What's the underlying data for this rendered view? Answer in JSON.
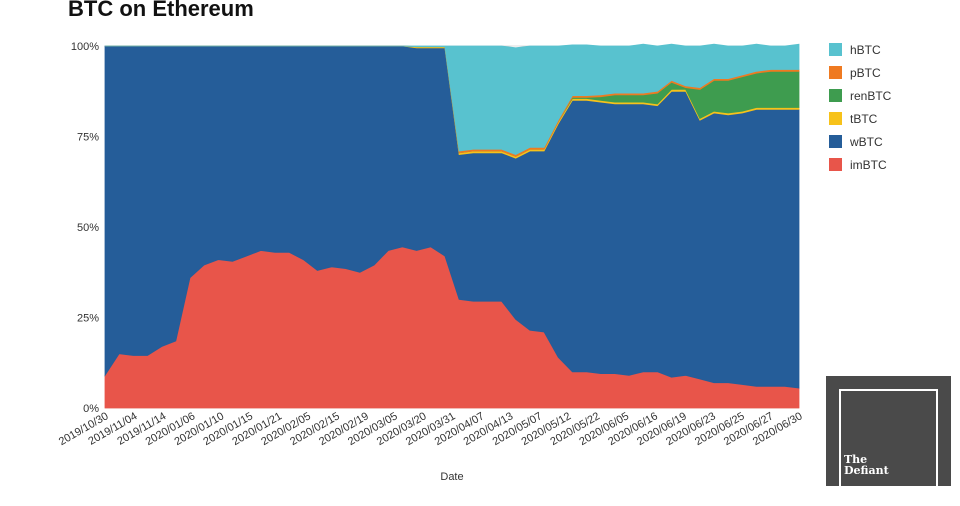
{
  "chart_data": {
    "type": "area",
    "stacking": "percent",
    "title": "BTC on Ethereum",
    "xlabel": "Date",
    "ylabel": "",
    "ylim": [
      0,
      100
    ],
    "yticks": [
      "0%",
      "25%",
      "50%",
      "75%",
      "100%"
    ],
    "x_tick_labels": [
      "2019/10/30",
      "2019/11/04",
      "2019/11/14",
      "2020/01/06",
      "2020/01/10",
      "2020/01/15",
      "2020/01/21",
      "2020/02/05",
      "2020/02/15",
      "2020/02/19",
      "2020/03/05",
      "2020/03/20",
      "2020/03/31",
      "2020/04/07",
      "2020/04/13",
      "2020/05/07",
      "2020/05/12",
      "2020/05/22",
      "2020/06/05",
      "2020/06/16",
      "2020/06/19",
      "2020/06/23",
      "2020/06/25",
      "2020/06/27",
      "2020/06/30"
    ],
    "legend_position": "right",
    "grid": true,
    "series": [
      {
        "name": "imBTC",
        "color": "#e8554a",
        "values": [
          9,
          15,
          14.5,
          14.5,
          17,
          18.5,
          36,
          39.5,
          41,
          40.5,
          42,
          43.5,
          43,
          43,
          41,
          38,
          39,
          38.5,
          37.5,
          39.5,
          43.5,
          44.5,
          43.5,
          44.5,
          42,
          30,
          29.5,
          29.5,
          29.5,
          24.5,
          21.5,
          21,
          14,
          10,
          10,
          9.5,
          9.5,
          9,
          10,
          10,
          8.5,
          9,
          8,
          7,
          7,
          6.5,
          6,
          6,
          6,
          5.5
        ]
      },
      {
        "name": "wBTC",
        "color": "#255d99",
        "values": [
          91,
          85,
          85.5,
          85.5,
          83,
          81.5,
          64,
          60.5,
          59,
          59.5,
          58,
          56.5,
          57,
          57,
          59,
          62,
          61,
          61.5,
          62.5,
          60.5,
          56.5,
          55.5,
          56,
          55,
          57.5,
          40,
          41,
          41,
          41,
          44.5,
          49.5,
          50,
          64.5,
          75,
          75,
          75,
          74.5,
          75,
          74,
          73.5,
          79,
          78.5,
          71.5,
          74.5,
          74,
          75,
          76.5,
          76.5,
          76.5,
          77
        ]
      },
      {
        "name": "tBTC",
        "color": "#f7c21a",
        "values": [
          0,
          0,
          0,
          0,
          0,
          0,
          0,
          0,
          0,
          0,
          0,
          0,
          0,
          0,
          0,
          0,
          0,
          0,
          0,
          0,
          0,
          0,
          0.3,
          0.3,
          0.3,
          0.5,
          0.5,
          0.5,
          0.5,
          0.5,
          0.5,
          0.5,
          0.5,
          0.5,
          0.5,
          0.5,
          0.5,
          0.5,
          0.5,
          0.5,
          0.5,
          0.5,
          0.5,
          0.5,
          0.5,
          0.5,
          0.5,
          0.5,
          0.5,
          0.5
        ]
      },
      {
        "name": "renBTC",
        "color": "#3e9c4f",
        "values": [
          0,
          0,
          0,
          0,
          0,
          0,
          0,
          0,
          0,
          0,
          0,
          0,
          0,
          0,
          0,
          0,
          0,
          0,
          0,
          0,
          0,
          0,
          0,
          0,
          0,
          0,
          0,
          0,
          0,
          0,
          0,
          0,
          0,
          0.3,
          0.3,
          1,
          2,
          2,
          2,
          3,
          2,
          0.5,
          8,
          8.5,
          9,
          9.5,
          9.5,
          10,
          10,
          10
        ]
      },
      {
        "name": "pBTC",
        "color": "#ef7a21",
        "values": [
          0,
          0,
          0,
          0,
          0,
          0,
          0,
          0,
          0,
          0,
          0,
          0,
          0,
          0,
          0,
          0,
          0,
          0,
          0,
          0,
          0,
          0,
          0,
          0,
          0,
          0.5,
          0.5,
          0.5,
          0.5,
          0.5,
          0.5,
          0.5,
          0.5,
          0.5,
          0.5,
          0.5,
          0.5,
          0.5,
          0.5,
          0.5,
          0.5,
          0.5,
          0.5,
          0.5,
          0.5,
          0.5,
          0.5,
          0.5,
          0.5,
          0.5
        ]
      },
      {
        "name": "hBTC",
        "color": "#58c2cf",
        "values": [
          0,
          0,
          0,
          0,
          0,
          0,
          0,
          0,
          0,
          0,
          0,
          0,
          0,
          0,
          0,
          0,
          0,
          0,
          0,
          0,
          0,
          0,
          0.2,
          0.2,
          0.2,
          29,
          28.5,
          28.5,
          28.5,
          29.5,
          28,
          28,
          20.5,
          14,
          14,
          13.5,
          13,
          13,
          13.5,
          12.5,
          10,
          11,
          11.5,
          9.5,
          9,
          8,
          7.5,
          6.5,
          6.5,
          7
        ]
      }
    ]
  },
  "branding": {
    "logo_line1": "The",
    "logo_line2": "Defiant"
  }
}
